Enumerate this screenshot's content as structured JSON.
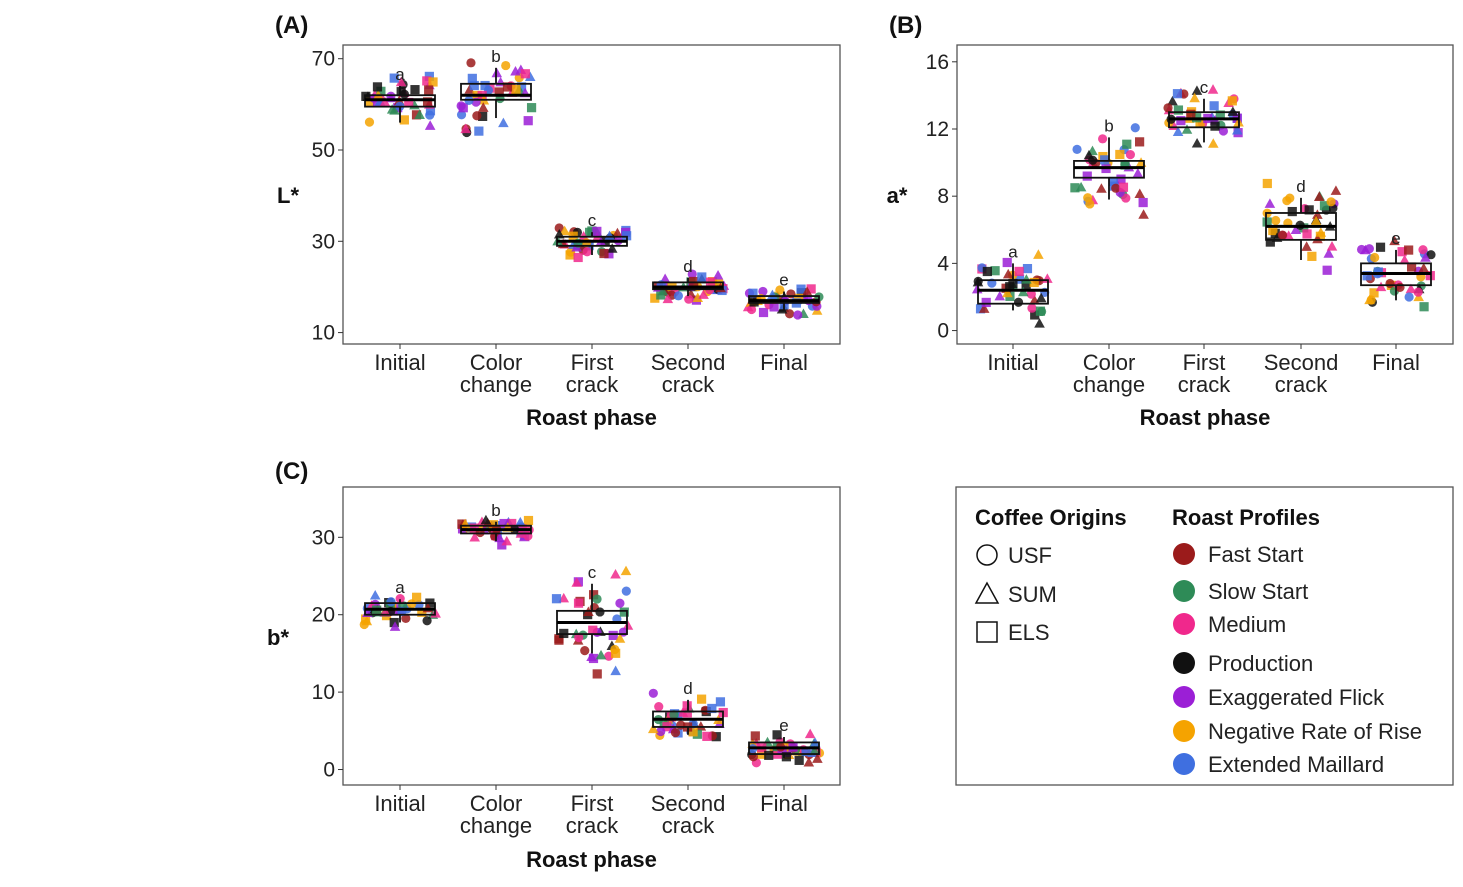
{
  "colors": {
    "Fast Start": "#9b1b1b",
    "Slow Start": "#2e8b57",
    "Medium": "#f0288c",
    "Production": "#111111",
    "Exaggerated Flick": "#9b1fd6",
    "Negative Rate of Rise": "#f5a300",
    "Extended Maillard": "#3f6fe0"
  },
  "chart_data": [
    {
      "type": "boxplot",
      "panel_label": "(A)",
      "xlabel": "Roast phase",
      "ylabel": "L*",
      "categories": [
        "Initial",
        "Color change",
        "First crack",
        "Second crack",
        "Final"
      ],
      "category_lines": [
        [
          "Initial"
        ],
        [
          "Color",
          "change"
        ],
        [
          "First",
          "crack"
        ],
        [
          "Second",
          "crack"
        ],
        [
          "Final"
        ]
      ],
      "yticks": [
        10,
        30,
        50,
        70
      ],
      "ylim": [
        7.5,
        73
      ],
      "group_letters": [
        "a",
        "b",
        "c",
        "d",
        "e"
      ],
      "boxes": [
        {
          "low": 56,
          "q1": 59.5,
          "median": 61,
          "q3": 62,
          "high": 64
        },
        {
          "low": 57,
          "q1": 61,
          "median": 62,
          "q3": 64.5,
          "high": 68
        },
        {
          "low": 27,
          "q1": 29,
          "median": 30,
          "q3": 31,
          "high": 32
        },
        {
          "low": 18,
          "q1": 19.5,
          "median": 20,
          "q3": 21,
          "high": 22
        },
        {
          "low": 15,
          "q1": 16.5,
          "median": 17,
          "q3": 18,
          "high": 19
        }
      ],
      "grid": false
    },
    {
      "type": "boxplot",
      "panel_label": "(B)",
      "xlabel": "Roast phase",
      "ylabel": "a*",
      "categories": [
        "Initial",
        "Color change",
        "First crack",
        "Second crack",
        "Final"
      ],
      "category_lines": [
        [
          "Initial"
        ],
        [
          "Color",
          "change"
        ],
        [
          "First",
          "crack"
        ],
        [
          "Second",
          "crack"
        ],
        [
          "Final"
        ]
      ],
      "yticks": [
        0,
        4,
        8,
        12,
        16
      ],
      "ylim": [
        -0.8,
        17
      ],
      "group_letters": [
        "a",
        "b",
        "c",
        "d",
        "e"
      ],
      "boxes": [
        {
          "low": 1.2,
          "q1": 1.6,
          "median": 2.4,
          "q3": 3.0,
          "high": 4.0
        },
        {
          "low": 7.8,
          "q1": 9.1,
          "median": 9.7,
          "q3": 10.1,
          "high": 11.5
        },
        {
          "low": 11.2,
          "q1": 12.1,
          "median": 12.6,
          "q3": 13.0,
          "high": 13.8
        },
        {
          "low": 4.2,
          "q1": 5.4,
          "median": 6.2,
          "q3": 7.0,
          "high": 7.9
        },
        {
          "low": 1.8,
          "q1": 2.7,
          "median": 3.4,
          "q3": 4.0,
          "high": 4.8
        }
      ],
      "grid": false
    },
    {
      "type": "boxplot",
      "panel_label": "(C)",
      "xlabel": "Roast phase",
      "ylabel": "b*",
      "categories": [
        "Initial",
        "Color change",
        "First crack",
        "Second crack",
        "Final"
      ],
      "category_lines": [
        [
          "Initial"
        ],
        [
          "Color",
          "change"
        ],
        [
          "First",
          "crack"
        ],
        [
          "Second",
          "crack"
        ],
        [
          "Final"
        ]
      ],
      "yticks": [
        0,
        10,
        20,
        30
      ],
      "ylim": [
        -2,
        36.5
      ],
      "group_letters": [
        "a",
        "b",
        "c",
        "d",
        "e"
      ],
      "boxes": [
        {
          "low": 19,
          "q1": 20,
          "median": 20.7,
          "q3": 21.5,
          "high": 22
        },
        {
          "low": 29.5,
          "q1": 30.5,
          "median": 31,
          "q3": 31.5,
          "high": 32
        },
        {
          "low": 15,
          "q1": 17.5,
          "median": 19,
          "q3": 20.5,
          "high": 24
        },
        {
          "low": 4.5,
          "q1": 5.5,
          "median": 6.5,
          "q3": 7.5,
          "high": 9
        },
        {
          "low": 1.5,
          "q1": 2,
          "median": 2.8,
          "q3": 3.5,
          "high": 4.2
        }
      ],
      "grid": false
    }
  ],
  "legend": {
    "origins_title": "Coffee Origins",
    "origins": [
      {
        "label": "USF",
        "shape": "circle"
      },
      {
        "label": "SUM",
        "shape": "triangle"
      },
      {
        "label": "ELS",
        "shape": "square"
      }
    ],
    "profiles_title": "Roast Profiles",
    "profiles": [
      "Fast Start",
      "Slow Start",
      "Medium",
      "Production",
      "Exaggerated Flick",
      "Negative Rate of Rise",
      "Extended Maillard"
    ]
  }
}
